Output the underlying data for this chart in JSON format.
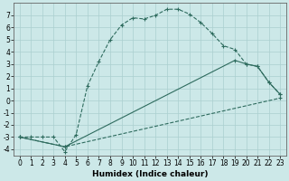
{
  "xlabel": "Humidex (Indice chaleur)",
  "bg_color": "#cce8e8",
  "line_color": "#2e6b5e",
  "grid_color": "#aacfcf",
  "xlim": [
    -0.5,
    23.5
  ],
  "ylim": [
    -4.5,
    8.0
  ],
  "yticks": [
    -4,
    -3,
    -2,
    -1,
    0,
    1,
    2,
    3,
    4,
    5,
    6,
    7
  ],
  "xticks": [
    0,
    1,
    2,
    3,
    4,
    5,
    6,
    7,
    8,
    9,
    10,
    11,
    12,
    13,
    14,
    15,
    16,
    17,
    18,
    19,
    20,
    21,
    22,
    23
  ],
  "line1_x": [
    0,
    1,
    2,
    3,
    4,
    5,
    6,
    7,
    8,
    9,
    10,
    11,
    12,
    13,
    14,
    15,
    16,
    17,
    18,
    19,
    20,
    21,
    22,
    23
  ],
  "line1_y": [
    -3,
    -3,
    -3,
    -3,
    -4.2,
    -2.8,
    1.2,
    3.2,
    5.0,
    6.2,
    6.8,
    6.7,
    7.0,
    7.5,
    7.5,
    7.1,
    6.4,
    5.5,
    4.5,
    4.2,
    3.0,
    2.8,
    1.5,
    0.5
  ],
  "line2_x": [
    0,
    4,
    19,
    20,
    21,
    22,
    23
  ],
  "line2_y": [
    -3,
    -3.8,
    3.3,
    3.0,
    2.8,
    1.5,
    0.5
  ],
  "line3_x": [
    0,
    4,
    23
  ],
  "line3_y": [
    -3,
    -3.8,
    0.2
  ],
  "tick_fontsize": 5.5,
  "xlabel_fontsize": 6.5
}
